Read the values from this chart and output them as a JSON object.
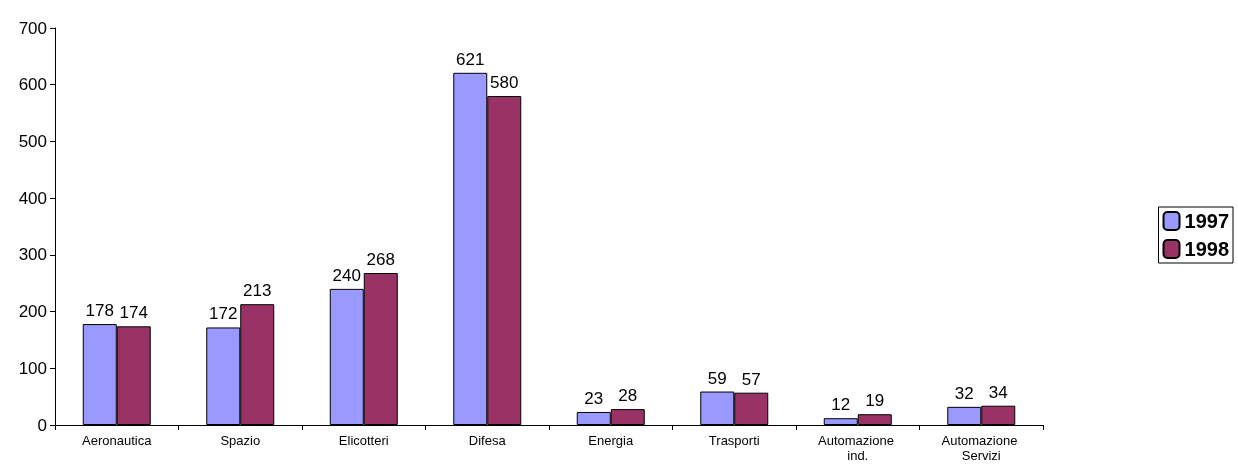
{
  "chart_data": {
    "type": "bar",
    "categories": [
      "Aeronautica",
      "Spazio",
      "Elicotteri",
      "Difesa",
      "Energia",
      "Trasporti",
      "Automazione ind.",
      "Automazione Servizi"
    ],
    "series": [
      {
        "name": "1997",
        "color": "#9999ff",
        "values": [
          178,
          172,
          240,
          621,
          23,
          59,
          12,
          32
        ]
      },
      {
        "name": "1998",
        "color": "#993366",
        "values": [
          174,
          213,
          268,
          580,
          28,
          57,
          19,
          34
        ]
      }
    ],
    "ylim": [
      0,
      700
    ],
    "yticks": [
      0,
      100,
      200,
      300,
      400,
      500,
      600,
      700
    ],
    "data_labels": true,
    "grid": false,
    "legend": "right"
  }
}
